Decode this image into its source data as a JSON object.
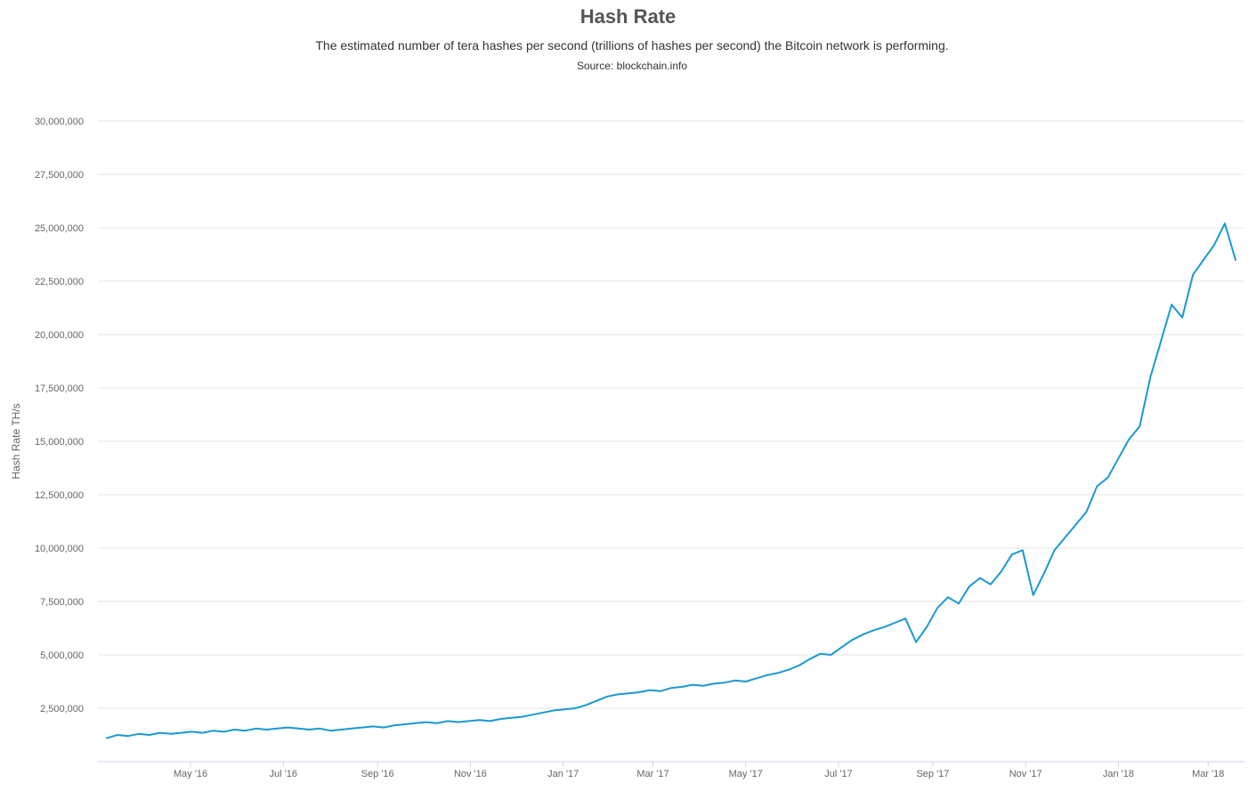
{
  "chart_data": {
    "type": "line",
    "title": "Hash Rate",
    "subtitle": "The estimated number of tera hashes per second (trillions of hashes per second) the Bitcoin network is performing.",
    "source": "Source: blockchain.info",
    "ylabel": "Hash Rate TH/s",
    "xlabel": "",
    "ylim": [
      0,
      30000000
    ],
    "xlim": [
      "2016-03-07",
      "2018-03-19"
    ],
    "grid": true,
    "legend": "none",
    "y_ticks": [
      2500000,
      5000000,
      7500000,
      10000000,
      12500000,
      15000000,
      17500000,
      20000000,
      22500000,
      25000000,
      27500000,
      30000000
    ],
    "y_tick_labels": [
      "2,500,000",
      "5,000,000",
      "7,500,000",
      "10,000,000",
      "12,500,000",
      "15,000,000",
      "17,500,000",
      "20,000,000",
      "22,500,000",
      "25,000,000",
      "27,500,000",
      "30,000,000"
    ],
    "x_ticks": [
      "2016-05-01",
      "2016-07-01",
      "2016-09-01",
      "2016-11-01",
      "2017-01-01",
      "2017-03-01",
      "2017-05-01",
      "2017-07-01",
      "2017-09-01",
      "2017-11-01",
      "2018-01-01",
      "2018-03-01"
    ],
    "x_tick_labels": [
      "May '16",
      "Jul '16",
      "Sep '16",
      "Nov '16",
      "Jan '17",
      "Mar '17",
      "May '17",
      "Jul '17",
      "Sep '17",
      "Nov '17",
      "Jan '18",
      "Mar '18"
    ],
    "series_color": "#1a99d0",
    "series": [
      {
        "name": "",
        "points": [
          [
            "2016-03-07",
            1100000
          ],
          [
            "2016-03-14",
            1250000
          ],
          [
            "2016-03-21",
            1200000
          ],
          [
            "2016-03-28",
            1300000
          ],
          [
            "2016-04-04",
            1250000
          ],
          [
            "2016-04-11",
            1350000
          ],
          [
            "2016-04-18",
            1300000
          ],
          [
            "2016-04-25",
            1350000
          ],
          [
            "2016-05-02",
            1400000
          ],
          [
            "2016-05-09",
            1350000
          ],
          [
            "2016-05-16",
            1450000
          ],
          [
            "2016-05-23",
            1400000
          ],
          [
            "2016-05-30",
            1500000
          ],
          [
            "2016-06-06",
            1450000
          ],
          [
            "2016-06-13",
            1550000
          ],
          [
            "2016-06-20",
            1500000
          ],
          [
            "2016-06-27",
            1550000
          ],
          [
            "2016-07-04",
            1600000
          ],
          [
            "2016-07-11",
            1550000
          ],
          [
            "2016-07-18",
            1500000
          ],
          [
            "2016-07-25",
            1550000
          ],
          [
            "2016-08-01",
            1450000
          ],
          [
            "2016-08-08",
            1500000
          ],
          [
            "2016-08-15",
            1550000
          ],
          [
            "2016-08-22",
            1600000
          ],
          [
            "2016-08-29",
            1650000
          ],
          [
            "2016-09-05",
            1600000
          ],
          [
            "2016-09-12",
            1700000
          ],
          [
            "2016-09-19",
            1750000
          ],
          [
            "2016-09-26",
            1800000
          ],
          [
            "2016-10-03",
            1850000
          ],
          [
            "2016-10-10",
            1800000
          ],
          [
            "2016-10-17",
            1900000
          ],
          [
            "2016-10-24",
            1850000
          ],
          [
            "2016-10-31",
            1900000
          ],
          [
            "2016-11-07",
            1950000
          ],
          [
            "2016-11-14",
            1900000
          ],
          [
            "2016-11-21",
            2000000
          ],
          [
            "2016-11-28",
            2050000
          ],
          [
            "2016-12-05",
            2100000
          ],
          [
            "2016-12-12",
            2200000
          ],
          [
            "2016-12-19",
            2300000
          ],
          [
            "2016-12-26",
            2400000
          ],
          [
            "2017-01-02",
            2450000
          ],
          [
            "2017-01-09",
            2500000
          ],
          [
            "2017-01-16",
            2650000
          ],
          [
            "2017-01-23",
            2850000
          ],
          [
            "2017-01-30",
            3050000
          ],
          [
            "2017-02-06",
            3150000
          ],
          [
            "2017-02-13",
            3200000
          ],
          [
            "2017-02-20",
            3250000
          ],
          [
            "2017-02-27",
            3350000
          ],
          [
            "2017-03-06",
            3300000
          ],
          [
            "2017-03-13",
            3450000
          ],
          [
            "2017-03-20",
            3500000
          ],
          [
            "2017-03-27",
            3600000
          ],
          [
            "2017-04-03",
            3550000
          ],
          [
            "2017-04-10",
            3650000
          ],
          [
            "2017-04-17",
            3700000
          ],
          [
            "2017-04-24",
            3800000
          ],
          [
            "2017-05-01",
            3750000
          ],
          [
            "2017-05-08",
            3900000
          ],
          [
            "2017-05-15",
            4050000
          ],
          [
            "2017-05-22",
            4150000
          ],
          [
            "2017-05-29",
            4300000
          ],
          [
            "2017-06-05",
            4500000
          ],
          [
            "2017-06-12",
            4800000
          ],
          [
            "2017-06-19",
            5050000
          ],
          [
            "2017-06-26",
            5000000
          ],
          [
            "2017-07-03",
            5350000
          ],
          [
            "2017-07-10",
            5700000
          ],
          [
            "2017-07-17",
            5950000
          ],
          [
            "2017-07-24",
            6150000
          ],
          [
            "2017-07-31",
            6300000
          ],
          [
            "2017-08-07",
            6500000
          ],
          [
            "2017-08-14",
            6700000
          ],
          [
            "2017-08-21",
            5600000
          ],
          [
            "2017-08-28",
            6300000
          ],
          [
            "2017-09-04",
            7200000
          ],
          [
            "2017-09-11",
            7700000
          ],
          [
            "2017-09-18",
            7400000
          ],
          [
            "2017-09-25",
            8200000
          ],
          [
            "2017-10-02",
            8600000
          ],
          [
            "2017-10-09",
            8300000
          ],
          [
            "2017-10-16",
            8900000
          ],
          [
            "2017-10-23",
            9700000
          ],
          [
            "2017-10-30",
            9900000
          ],
          [
            "2017-11-06",
            7800000
          ],
          [
            "2017-11-13",
            8800000
          ],
          [
            "2017-11-20",
            9900000
          ],
          [
            "2017-11-27",
            10500000
          ],
          [
            "2017-12-04",
            11100000
          ],
          [
            "2017-12-11",
            11700000
          ],
          [
            "2017-12-18",
            12900000
          ],
          [
            "2017-12-25",
            13300000
          ],
          [
            "2018-01-01",
            14200000
          ],
          [
            "2018-01-08",
            15100000
          ],
          [
            "2018-01-15",
            15700000
          ],
          [
            "2018-01-22",
            18000000
          ],
          [
            "2018-01-29",
            19700000
          ],
          [
            "2018-02-05",
            21400000
          ],
          [
            "2018-02-12",
            20800000
          ],
          [
            "2018-02-19",
            22800000
          ],
          [
            "2018-02-26",
            23500000
          ],
          [
            "2018-03-05",
            24200000
          ],
          [
            "2018-03-12",
            25200000
          ],
          [
            "2018-03-19",
            23500000
          ]
        ]
      }
    ]
  }
}
